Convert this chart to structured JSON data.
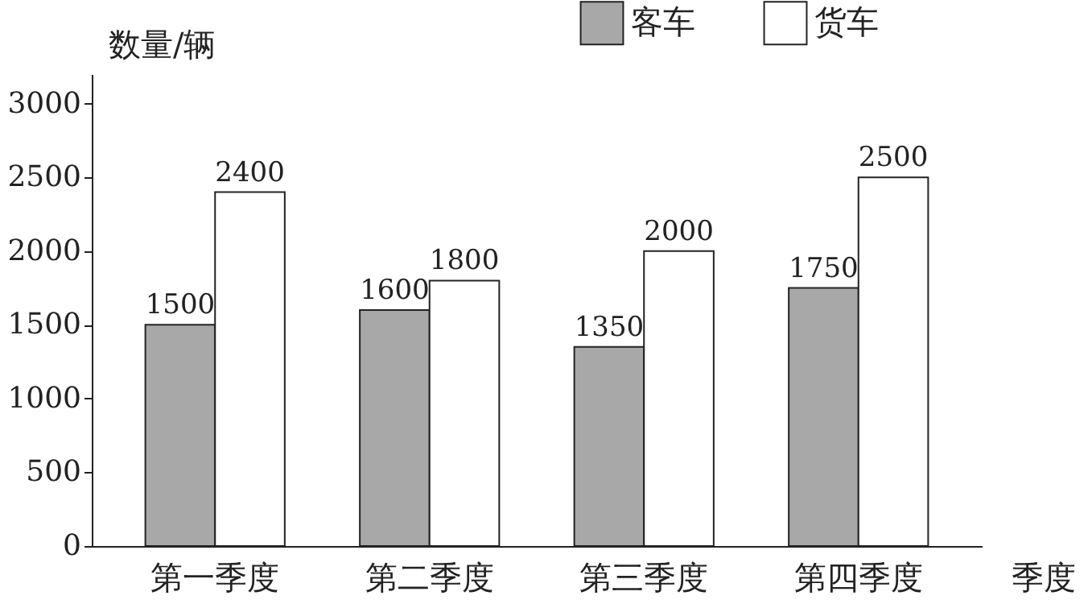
{
  "chart_data": {
    "type": "bar",
    "xlabel": "季度",
    "ylabel": "数量/辆",
    "categories": [
      "第一季度",
      "第二季度",
      "第三季度",
      "第四季度"
    ],
    "series": [
      {
        "name": "客车",
        "color": "#a8a8a8",
        "values": [
          1500,
          1600,
          1350,
          1750
        ]
      },
      {
        "name": "货车",
        "color": "#ffffff",
        "values": [
          2400,
          1800,
          2000,
          2500
        ]
      }
    ],
    "ylim": [
      0,
      3200
    ],
    "yticks": [
      0,
      500,
      1000,
      1500,
      2000,
      2500,
      3000
    ],
    "data_labels": true,
    "legend": "top right"
  }
}
